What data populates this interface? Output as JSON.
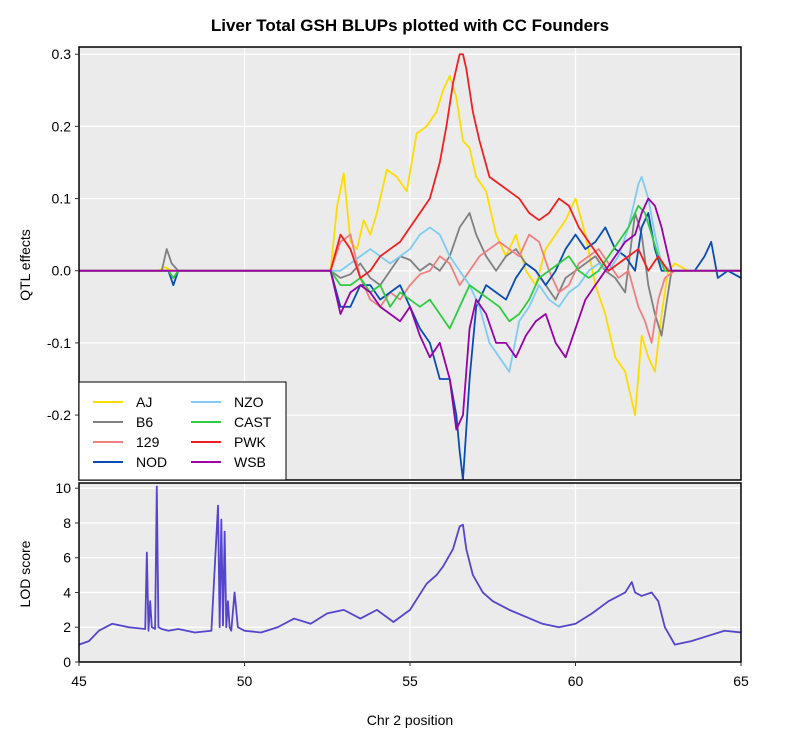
{
  "chart_data": [
    {
      "type": "line",
      "title": "Liver Total GSH BLUPs plotted with CC Founders",
      "ylabel": "QTL effects",
      "xlim": [
        45,
        65
      ],
      "ylim": [
        -0.29,
        0.31
      ],
      "grid": true,
      "legend_placement": "bottom-left",
      "yticks": [
        -0.2,
        -0.1,
        0.0,
        0.1,
        0.2,
        0.3
      ],
      "ytick_labels": [
        "-0.2",
        "-0.1",
        "0.0",
        "0.1",
        "0.2",
        "0.3"
      ],
      "series": [
        {
          "name": "AJ",
          "color": "#FFDC00",
          "x": [
            45,
            47.4,
            47.6,
            47.8,
            48.0,
            52.6,
            52.8,
            53.0,
            53.2,
            53.4,
            53.6,
            53.8,
            54.0,
            54.3,
            54.6,
            54.9,
            55.2,
            55.5,
            55.8,
            56.0,
            56.2,
            56.4,
            56.6,
            56.8,
            57.0,
            57.3,
            57.6,
            57.9,
            58.2,
            58.5,
            58.8,
            59.1,
            59.4,
            59.7,
            60.0,
            60.3,
            60.6,
            60.9,
            61.2,
            61.5,
            61.8,
            62.0,
            62.2,
            62.4,
            62.6,
            62.8,
            63.0,
            63.4,
            63.8,
            64.2,
            64.6,
            65
          ],
          "y": [
            0,
            0,
            0.005,
            0,
            0,
            0,
            0.09,
            0.135,
            0.04,
            0.03,
            0.07,
            0.05,
            0.08,
            0.14,
            0.13,
            0.11,
            0.19,
            0.2,
            0.22,
            0.25,
            0.27,
            0.24,
            0.18,
            0.17,
            0.13,
            0.11,
            0.05,
            0.02,
            0.05,
            0.0,
            -0.02,
            0.03,
            0.05,
            0.07,
            0.1,
            0.05,
            -0.02,
            -0.06,
            -0.12,
            -0.14,
            -0.2,
            -0.09,
            -0.12,
            -0.14,
            -0.06,
            0.0,
            0.01,
            0.0,
            0.0,
            0.0,
            0.0,
            0.0
          ]
        },
        {
          "name": "B6",
          "color": "#808080",
          "x": [
            45,
            47.5,
            47.65,
            47.8,
            48.0,
            52.6,
            52.9,
            53.2,
            53.5,
            53.8,
            54.1,
            54.4,
            54.7,
            55.0,
            55.3,
            55.6,
            55.9,
            56.2,
            56.5,
            56.8,
            57.0,
            57.3,
            57.6,
            57.9,
            58.2,
            58.5,
            58.8,
            59.1,
            59.4,
            59.7,
            60.0,
            60.3,
            60.6,
            60.9,
            61.2,
            61.5,
            61.8,
            62.0,
            62.2,
            62.4,
            62.6,
            62.9,
            63.2,
            63.6,
            64.0,
            64.4,
            64.8,
            65
          ],
          "y": [
            0,
            0,
            0.03,
            0.01,
            0,
            0,
            -0.01,
            -0.005,
            0.01,
            -0.01,
            -0.02,
            0.0,
            0.02,
            0.015,
            0.0,
            0.01,
            0.0,
            0.02,
            0.06,
            0.08,
            0.05,
            0.02,
            0.0,
            0.02,
            0.03,
            0.01,
            0.0,
            -0.02,
            -0.04,
            -0.01,
            0.0,
            0.01,
            0.02,
            0.0,
            -0.01,
            -0.03,
            0.08,
            0.05,
            -0.02,
            -0.06,
            -0.09,
            0.0,
            0.0,
            0.0,
            0.0,
            0.0,
            0.0,
            0.0
          ]
        },
        {
          "name": "129",
          "color": "#F08080",
          "x": [
            45,
            47.7,
            47.85,
            48.0,
            52.6,
            52.9,
            53.2,
            53.5,
            53.8,
            54.1,
            54.4,
            54.7,
            55.0,
            55.3,
            55.6,
            55.9,
            56.2,
            56.5,
            56.8,
            57.1,
            57.4,
            57.7,
            58.0,
            58.3,
            58.6,
            58.9,
            59.2,
            59.5,
            59.8,
            60.1,
            60.4,
            60.7,
            61.0,
            61.3,
            61.6,
            61.9,
            62.1,
            62.3,
            62.5,
            62.7,
            63.0,
            63.5,
            64.0,
            64.5,
            65
          ],
          "y": [
            0,
            0,
            -0.01,
            0,
            0,
            0.04,
            0.05,
            -0.01,
            -0.04,
            -0.05,
            -0.03,
            -0.04,
            -0.02,
            -0.005,
            0.0,
            0.02,
            0.01,
            -0.02,
            0.0,
            0.02,
            0.03,
            0.04,
            0.03,
            0.02,
            0.05,
            0.04,
            0.0,
            -0.03,
            -0.02,
            0.01,
            0.02,
            0.03,
            0.01,
            -0.01,
            0.0,
            -0.05,
            -0.07,
            -0.1,
            -0.04,
            -0.01,
            0.0,
            0.0,
            0.0,
            0.0,
            0.0
          ]
        },
        {
          "name": "NOD",
          "color": "#0A4DB2",
          "x": [
            45,
            47.7,
            47.85,
            48.0,
            52.6,
            52.9,
            53.2,
            53.5,
            53.8,
            54.1,
            54.4,
            54.7,
            55.0,
            55.3,
            55.6,
            55.9,
            56.2,
            56.4,
            56.5,
            56.6,
            56.8,
            57.0,
            57.3,
            57.6,
            57.9,
            58.2,
            58.5,
            58.8,
            59.1,
            59.4,
            59.7,
            60.0,
            60.3,
            60.6,
            60.9,
            61.2,
            61.5,
            61.8,
            62.0,
            62.2,
            62.4,
            62.6,
            62.9,
            63.2,
            63.6,
            63.9,
            64.1,
            64.3,
            64.6,
            65
          ],
          "y": [
            0,
            0,
            -0.02,
            0,
            0,
            -0.05,
            -0.05,
            -0.02,
            -0.02,
            -0.04,
            -0.03,
            -0.02,
            -0.05,
            -0.08,
            -0.1,
            -0.15,
            -0.15,
            -0.2,
            -0.25,
            -0.29,
            -0.15,
            -0.05,
            -0.02,
            -0.03,
            -0.04,
            -0.01,
            0.01,
            0.0,
            -0.02,
            0.0,
            0.03,
            0.05,
            0.03,
            0.04,
            0.06,
            0.03,
            0.02,
            0.0,
            0.06,
            0.08,
            0.03,
            0.0,
            0.0,
            0.0,
            0.0,
            0.02,
            0.04,
            -0.01,
            0.0,
            -0.01
          ]
        },
        {
          "name": "NZO",
          "color": "#7ECCF4",
          "x": [
            45,
            52.6,
            52.9,
            53.2,
            53.5,
            53.8,
            54.1,
            54.4,
            54.7,
            55.0,
            55.3,
            55.6,
            55.9,
            56.2,
            56.5,
            56.8,
            57.1,
            57.4,
            57.7,
            58.0,
            58.3,
            58.6,
            58.9,
            59.2,
            59.5,
            59.8,
            60.1,
            60.4,
            60.7,
            61.0,
            61.3,
            61.6,
            61.9,
            62.0,
            62.2,
            62.4,
            62.6,
            62.9,
            63.2,
            63.6,
            64.0,
            64.4,
            64.8,
            65
          ],
          "y": [
            0,
            0,
            0.0,
            0.01,
            0.02,
            0.03,
            0.02,
            0.01,
            0.02,
            0.03,
            0.05,
            0.06,
            0.05,
            0.02,
            0.0,
            -0.02,
            -0.05,
            -0.1,
            -0.12,
            -0.14,
            -0.07,
            -0.05,
            -0.02,
            -0.04,
            -0.05,
            -0.03,
            -0.02,
            0.0,
            0.01,
            0.0,
            0.02,
            0.06,
            0.12,
            0.13,
            0.1,
            0.05,
            0.01,
            0.0,
            0.0,
            0.0,
            0.0,
            0.0,
            0.0,
            0.0
          ]
        },
        {
          "name": "CAST",
          "color": "#2ECC40",
          "x": [
            45,
            47.7,
            47.85,
            48.0,
            52.6,
            52.9,
            53.2,
            53.5,
            53.8,
            54.1,
            54.4,
            54.7,
            55.0,
            55.3,
            55.6,
            55.9,
            56.2,
            56.5,
            56.8,
            57.1,
            57.4,
            57.7,
            58.0,
            58.3,
            58.6,
            58.9,
            59.2,
            59.5,
            59.8,
            60.1,
            60.4,
            60.7,
            61.0,
            61.3,
            61.6,
            61.9,
            62.1,
            62.3,
            62.5,
            62.7,
            63.0,
            63.5,
            64.0,
            64.5,
            65
          ],
          "y": [
            0,
            0,
            -0.01,
            0,
            0,
            -0.02,
            -0.02,
            -0.01,
            -0.03,
            -0.02,
            -0.05,
            -0.03,
            -0.04,
            -0.05,
            -0.04,
            -0.06,
            -0.08,
            -0.05,
            -0.02,
            -0.03,
            -0.04,
            -0.05,
            -0.07,
            -0.06,
            -0.04,
            -0.01,
            0.0,
            0.01,
            0.02,
            0.0,
            -0.01,
            0.0,
            0.02,
            0.04,
            0.06,
            0.09,
            0.08,
            0.05,
            0.02,
            0.0,
            0.0,
            0.0,
            0.0,
            0.0,
            0.0
          ]
        },
        {
          "name": "PWK",
          "color": "#F02020",
          "x": [
            45,
            52.6,
            52.9,
            53.2,
            53.5,
            53.8,
            54.1,
            54.4,
            54.7,
            55.0,
            55.3,
            55.6,
            55.9,
            56.1,
            56.3,
            56.5,
            56.6,
            56.7,
            56.9,
            57.1,
            57.4,
            57.7,
            58.0,
            58.3,
            58.6,
            58.9,
            59.2,
            59.5,
            59.8,
            60.1,
            60.4,
            60.7,
            61.0,
            61.3,
            61.6,
            61.9,
            62.2,
            62.5,
            62.8,
            63.2,
            63.6,
            64.0,
            64.4,
            64.8,
            65
          ],
          "y": [
            0,
            0,
            0.05,
            0.03,
            -0.01,
            0.0,
            0.02,
            0.03,
            0.04,
            0.06,
            0.08,
            0.1,
            0.15,
            0.2,
            0.26,
            0.3,
            0.3,
            0.28,
            0.22,
            0.18,
            0.13,
            0.12,
            0.11,
            0.1,
            0.08,
            0.07,
            0.08,
            0.1,
            0.09,
            0.06,
            0.04,
            0.02,
            0.0,
            0.01,
            0.02,
            0.03,
            0.0,
            0.02,
            0.0,
            0.0,
            0.0,
            0.0,
            0.0,
            0.0,
            0.0
          ]
        },
        {
          "name": "WSB",
          "color": "#9900AA",
          "x": [
            45,
            52.6,
            52.9,
            53.2,
            53.5,
            53.8,
            54.1,
            54.4,
            54.7,
            55.0,
            55.3,
            55.6,
            55.9,
            56.2,
            56.4,
            56.6,
            56.8,
            57.0,
            57.3,
            57.6,
            57.9,
            58.2,
            58.5,
            58.8,
            59.1,
            59.4,
            59.7,
            60.0,
            60.3,
            60.6,
            60.9,
            61.2,
            61.5,
            61.8,
            62.0,
            62.2,
            62.4,
            62.6,
            62.9,
            63.2,
            63.6,
            64.0,
            64.4,
            64.8,
            65
          ],
          "y": [
            0,
            0,
            -0.06,
            -0.03,
            -0.02,
            -0.03,
            -0.05,
            -0.06,
            -0.07,
            -0.05,
            -0.09,
            -0.12,
            -0.1,
            -0.15,
            -0.22,
            -0.2,
            -0.08,
            -0.04,
            -0.06,
            -0.1,
            -0.1,
            -0.12,
            -0.09,
            -0.07,
            -0.06,
            -0.1,
            -0.12,
            -0.08,
            -0.04,
            -0.02,
            0.0,
            0.02,
            0.04,
            0.05,
            0.08,
            0.1,
            0.09,
            0.06,
            0.0,
            0.0,
            0.0,
            0.0,
            0.0,
            0.0,
            0.0
          ]
        }
      ]
    },
    {
      "type": "line",
      "xlabel": "Chr 2 position",
      "ylabel": "LOD score",
      "xlim": [
        45,
        65
      ],
      "ylim": [
        0,
        10.3
      ],
      "grid": true,
      "xticks": [
        45,
        50,
        55,
        60,
        65
      ],
      "xtick_labels": [
        "45",
        "50",
        "55",
        "60",
        "65"
      ],
      "yticks": [
        0,
        2,
        4,
        6,
        8,
        10
      ],
      "ytick_labels": [
        "0",
        "2",
        "4",
        "6",
        "8",
        "10"
      ],
      "series": [
        {
          "color": "#5544CC",
          "x": [
            45,
            45.3,
            45.6,
            46.0,
            46.5,
            47.0,
            47.05,
            47.1,
            47.15,
            47.2,
            47.3,
            47.35,
            47.4,
            47.5,
            47.7,
            48.0,
            48.5,
            49.0,
            49.2,
            49.25,
            49.3,
            49.35,
            49.4,
            49.45,
            49.5,
            49.55,
            49.6,
            49.7,
            49.8,
            50.0,
            50.5,
            51.0,
            51.5,
            52.0,
            52.5,
            53.0,
            53.5,
            54.0,
            54.5,
            55.0,
            55.5,
            55.8,
            56.0,
            56.3,
            56.5,
            56.6,
            56.7,
            56.9,
            57.2,
            57.5,
            58.0,
            58.5,
            59.0,
            59.5,
            60.0,
            60.5,
            61.0,
            61.5,
            61.7,
            61.8,
            62.0,
            62.3,
            62.5,
            62.7,
            63.0,
            63.5,
            64.0,
            64.5,
            65
          ],
          "y": [
            1.0,
            1.2,
            1.8,
            2.2,
            2.0,
            1.9,
            6.3,
            1.8,
            3.5,
            2.0,
            1.9,
            10.1,
            2.0,
            1.9,
            1.8,
            1.9,
            1.7,
            1.8,
            9.0,
            2.0,
            8.2,
            2.1,
            7.5,
            2.0,
            3.5,
            2.0,
            1.8,
            4.0,
            2.0,
            1.8,
            1.7,
            2.0,
            2.5,
            2.2,
            2.8,
            3.0,
            2.5,
            3.0,
            2.3,
            3.0,
            4.5,
            5.0,
            5.5,
            6.5,
            7.8,
            7.9,
            6.5,
            5.0,
            4.0,
            3.5,
            3.0,
            2.6,
            2.2,
            2.0,
            2.2,
            2.8,
            3.5,
            4.0,
            4.6,
            4.0,
            3.8,
            4.0,
            3.5,
            2.0,
            1.0,
            1.2,
            1.5,
            1.8,
            1.7
          ]
        }
      ]
    }
  ]
}
